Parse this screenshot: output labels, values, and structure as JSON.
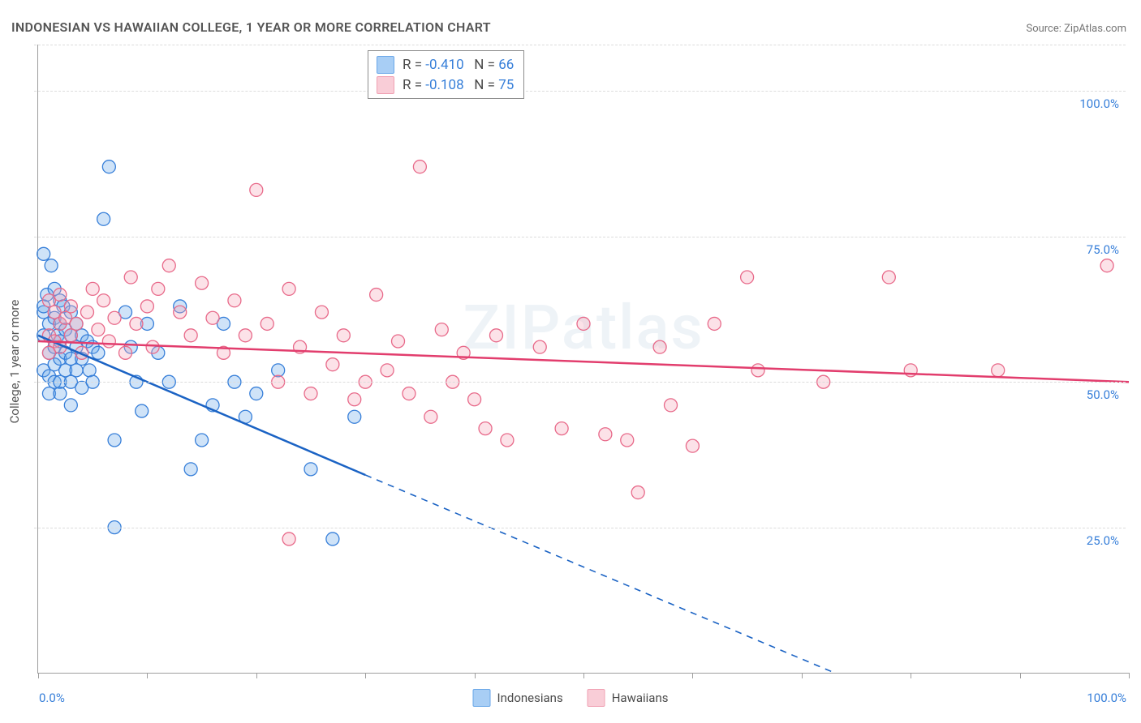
{
  "title": "INDONESIAN VS HAWAIIAN COLLEGE, 1 YEAR OR MORE CORRELATION CHART",
  "source": "Source: ZipAtlas.com",
  "y_axis_label": "College, 1 year or more",
  "watermark": "ZIPatlas",
  "chart": {
    "type": "scatter",
    "xlim": [
      0,
      100
    ],
    "ylim": [
      0,
      108
    ],
    "x_ticks": [
      0,
      10,
      20,
      30,
      40,
      50,
      60,
      70,
      80,
      90,
      100
    ],
    "x_tick_labels": {
      "0": "0.0%",
      "100": "100.0%"
    },
    "y_gridlines": [
      25,
      50,
      75,
      100,
      108
    ],
    "y_tick_labels": {
      "25": "25.0%",
      "50": "50.0%",
      "75": "75.0%",
      "100": "100.0%"
    },
    "marker_radius": 8,
    "background_color": "#ffffff",
    "grid_color": "#dcdcdc",
    "series": [
      {
        "name": "Indonesians",
        "fill_color": "#6aa7e8",
        "stroke_color": "#377fd9",
        "line_color": "#1b63c4",
        "line_width": 2.5,
        "R": "-0.410",
        "N": "66",
        "trend": {
          "x1": 0,
          "y1": 58,
          "x2_solid": 30,
          "y2_solid": 34,
          "x2_dash": 73,
          "y2_dash": 0
        },
        "points": [
          [
            0.5,
            72
          ],
          [
            0.5,
            62
          ],
          [
            0.5,
            63
          ],
          [
            0.5,
            58
          ],
          [
            0.5,
            52
          ],
          [
            0.8,
            65
          ],
          [
            1,
            60
          ],
          [
            1,
            55
          ],
          [
            1,
            51
          ],
          [
            1,
            48
          ],
          [
            1.2,
            70
          ],
          [
            1.5,
            66
          ],
          [
            1.5,
            61
          ],
          [
            1.5,
            56
          ],
          [
            1.5,
            53
          ],
          [
            1.5,
            50
          ],
          [
            1.8,
            58
          ],
          [
            2,
            64
          ],
          [
            2,
            60
          ],
          [
            2,
            57
          ],
          [
            2,
            54
          ],
          [
            2,
            50
          ],
          [
            2,
            48
          ],
          [
            2.3,
            63
          ],
          [
            2.5,
            59
          ],
          [
            2.5,
            55
          ],
          [
            2.5,
            52
          ],
          [
            3,
            62
          ],
          [
            3,
            58
          ],
          [
            3,
            54
          ],
          [
            3,
            50
          ],
          [
            3,
            46
          ],
          [
            3.5,
            60
          ],
          [
            3.5,
            56
          ],
          [
            3.5,
            52
          ],
          [
            4,
            58
          ],
          [
            4,
            54
          ],
          [
            4,
            49
          ],
          [
            4.5,
            57
          ],
          [
            4.7,
            52
          ],
          [
            5,
            56
          ],
          [
            5,
            50
          ],
          [
            5.5,
            55
          ],
          [
            6,
            78
          ],
          [
            6.5,
            87
          ],
          [
            7,
            40
          ],
          [
            7,
            25
          ],
          [
            8,
            62
          ],
          [
            8.5,
            56
          ],
          [
            9,
            50
          ],
          [
            9.5,
            45
          ],
          [
            10,
            60
          ],
          [
            11,
            55
          ],
          [
            12,
            50
          ],
          [
            13,
            63
          ],
          [
            14,
            35
          ],
          [
            15,
            40
          ],
          [
            16,
            46
          ],
          [
            17,
            60
          ],
          [
            18,
            50
          ],
          [
            19,
            44
          ],
          [
            20,
            48
          ],
          [
            22,
            52
          ],
          [
            25,
            35
          ],
          [
            27,
            23
          ],
          [
            29,
            44
          ]
        ]
      },
      {
        "name": "Hawaiians",
        "fill_color": "#f5a5b8",
        "stroke_color": "#e86a8a",
        "line_color": "#e23d6d",
        "line_width": 2.5,
        "R": "-0.108",
        "N": "75",
        "trend": {
          "x1": 0,
          "y1": 57,
          "x2_solid": 100,
          "y2_solid": 50,
          "x2_dash": 100,
          "y2_dash": 50
        },
        "points": [
          [
            1,
            64
          ],
          [
            1,
            58
          ],
          [
            1,
            55
          ],
          [
            1.5,
            62
          ],
          [
            1.5,
            57
          ],
          [
            2,
            60
          ],
          [
            2,
            56
          ],
          [
            2,
            65
          ],
          [
            2.5,
            61
          ],
          [
            3,
            63
          ],
          [
            3,
            58
          ],
          [
            3.5,
            60
          ],
          [
            4,
            55
          ],
          [
            4.5,
            62
          ],
          [
            5,
            66
          ],
          [
            5.5,
            59
          ],
          [
            6,
            64
          ],
          [
            6.5,
            57
          ],
          [
            7,
            61
          ],
          [
            8,
            55
          ],
          [
            8.5,
            68
          ],
          [
            9,
            60
          ],
          [
            10,
            63
          ],
          [
            10.5,
            56
          ],
          [
            11,
            66
          ],
          [
            12,
            70
          ],
          [
            13,
            62
          ],
          [
            14,
            58
          ],
          [
            15,
            67
          ],
          [
            16,
            61
          ],
          [
            17,
            55
          ],
          [
            18,
            64
          ],
          [
            19,
            58
          ],
          [
            20,
            83
          ],
          [
            21,
            60
          ],
          [
            22,
            50
          ],
          [
            23,
            66
          ],
          [
            24,
            56
          ],
          [
            25,
            48
          ],
          [
            26,
            62
          ],
          [
            27,
            53
          ],
          [
            28,
            58
          ],
          [
            29,
            47
          ],
          [
            30,
            50
          ],
          [
            31,
            65
          ],
          [
            32,
            52
          ],
          [
            33,
            57
          ],
          [
            34,
            48
          ],
          [
            35,
            87
          ],
          [
            36,
            44
          ],
          [
            37,
            59
          ],
          [
            38,
            50
          ],
          [
            39,
            55
          ],
          [
            40,
            47
          ],
          [
            41,
            42
          ],
          [
            42,
            58
          ],
          [
            43,
            40
          ],
          [
            46,
            56
          ],
          [
            48,
            42
          ],
          [
            50,
            60
          ],
          [
            52,
            41
          ],
          [
            54,
            40
          ],
          [
            55,
            31
          ],
          [
            57,
            56
          ],
          [
            58,
            46
          ],
          [
            60,
            39
          ],
          [
            62,
            60
          ],
          [
            65,
            68
          ],
          [
            66,
            52
          ],
          [
            72,
            50
          ],
          [
            78,
            68
          ],
          [
            80,
            52
          ],
          [
            88,
            52
          ],
          [
            98,
            70
          ],
          [
            23,
            23
          ]
        ]
      }
    ]
  },
  "stat_legend": {
    "rows": [
      {
        "swatch_fill": "#a8cef5",
        "swatch_border": "#6aa7e8",
        "r_label": "R = ",
        "r_val": "-0.410",
        "n_label": "   N = ",
        "n_val": "66"
      },
      {
        "swatch_fill": "#f9cdd7",
        "swatch_border": "#f0a1b3",
        "r_label": "R = ",
        "r_val": "-0.108",
        "n_label": "   N = ",
        "n_val": "75"
      }
    ]
  },
  "bottom_legend": {
    "items": [
      {
        "swatch_fill": "#a8cef5",
        "swatch_border": "#6aa7e8",
        "label": "Indonesians"
      },
      {
        "swatch_fill": "#f9cdd7",
        "swatch_border": "#f0a1b3",
        "label": "Hawaiians"
      }
    ]
  }
}
